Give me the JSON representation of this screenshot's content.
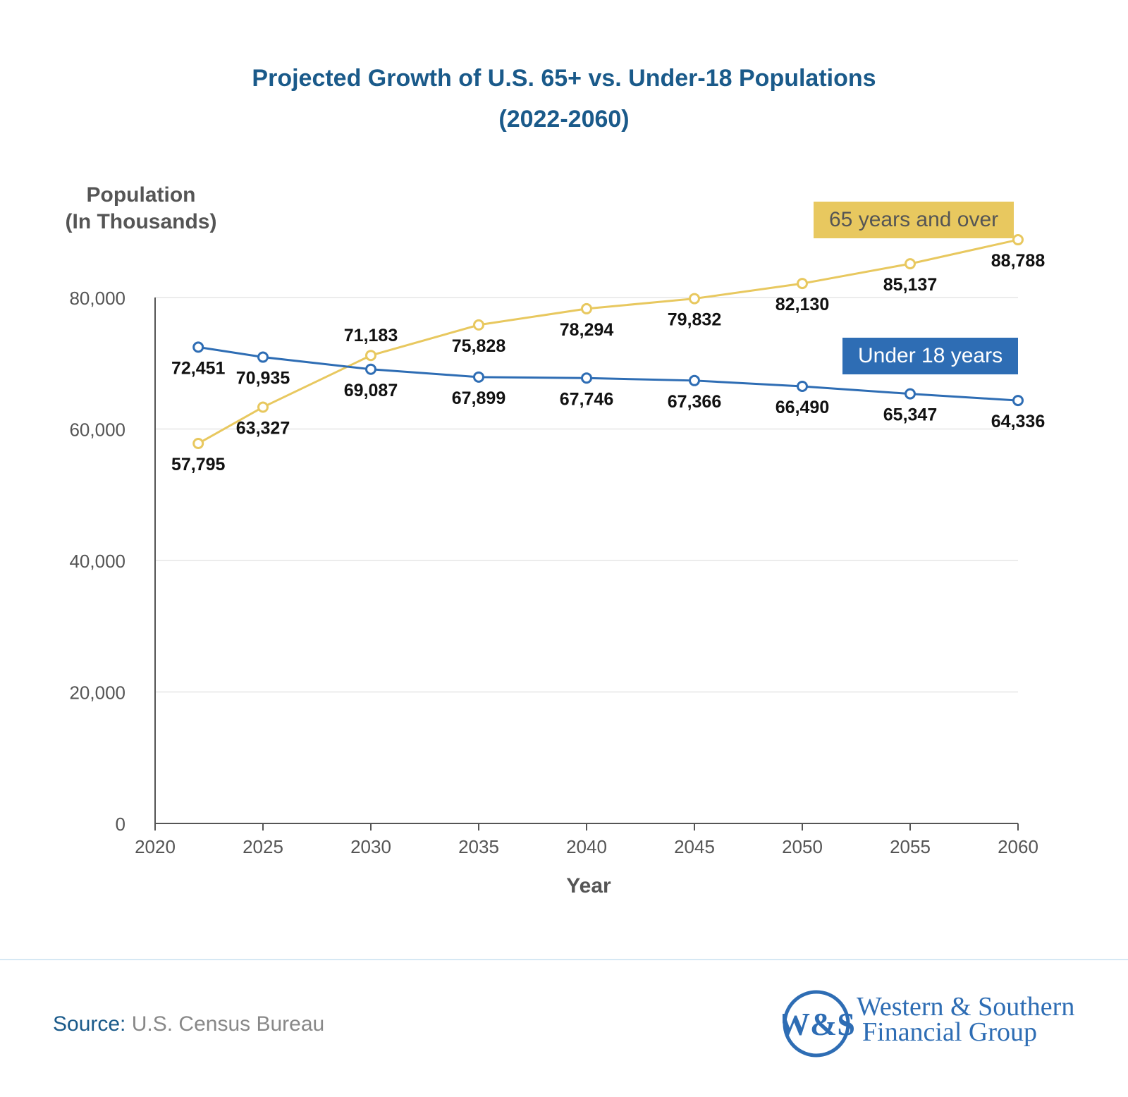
{
  "chart_data": {
    "type": "line",
    "title": "Projected Growth of U.S. 65+ vs. Under-18 Populations",
    "subtitle": "(2022-2060)",
    "ylabel_line1": "Population",
    "ylabel_line2": "(In Thousands)",
    "xlabel": "Year",
    "x": [
      2022,
      2025,
      2030,
      2035,
      2040,
      2045,
      2050,
      2055,
      2060
    ],
    "xlim": [
      2020,
      2060
    ],
    "ylim": [
      0,
      80000
    ],
    "x_ticks": [
      "2020",
      "2025",
      "2030",
      "2035",
      "2040",
      "2045",
      "2050",
      "2055",
      "2060"
    ],
    "y_ticks": [
      "0",
      "20,000",
      "40,000",
      "60,000",
      "80,000"
    ],
    "grid": "horizontal",
    "legend_placement": "inline-right",
    "series": [
      {
        "name": "65 years and over",
        "color": "#e8c85f",
        "values": [
          57795,
          63327,
          71183,
          75828,
          78294,
          79832,
          82130,
          85137,
          88788
        ],
        "labels": [
          "57,795",
          "63,327",
          "71,183",
          "75,828",
          "78,294",
          "79,832",
          "82,130",
          "85,137",
          "88,788"
        ]
      },
      {
        "name": "Under 18 years",
        "color": "#2e6db4",
        "values": [
          72451,
          70935,
          69087,
          67899,
          67746,
          67366,
          66490,
          65347,
          64336
        ],
        "labels": [
          "72,451",
          "70,935",
          "69,087",
          "67,899",
          "67,746",
          "67,366",
          "66,490",
          "65,347",
          "64,336"
        ]
      }
    ]
  },
  "footer": {
    "source_label": "Source:",
    "source_value": "U.S. Census Bureau",
    "logo_mark": "W&S",
    "logo_line1": "Western & Southern",
    "logo_line2": "Financial Group"
  }
}
